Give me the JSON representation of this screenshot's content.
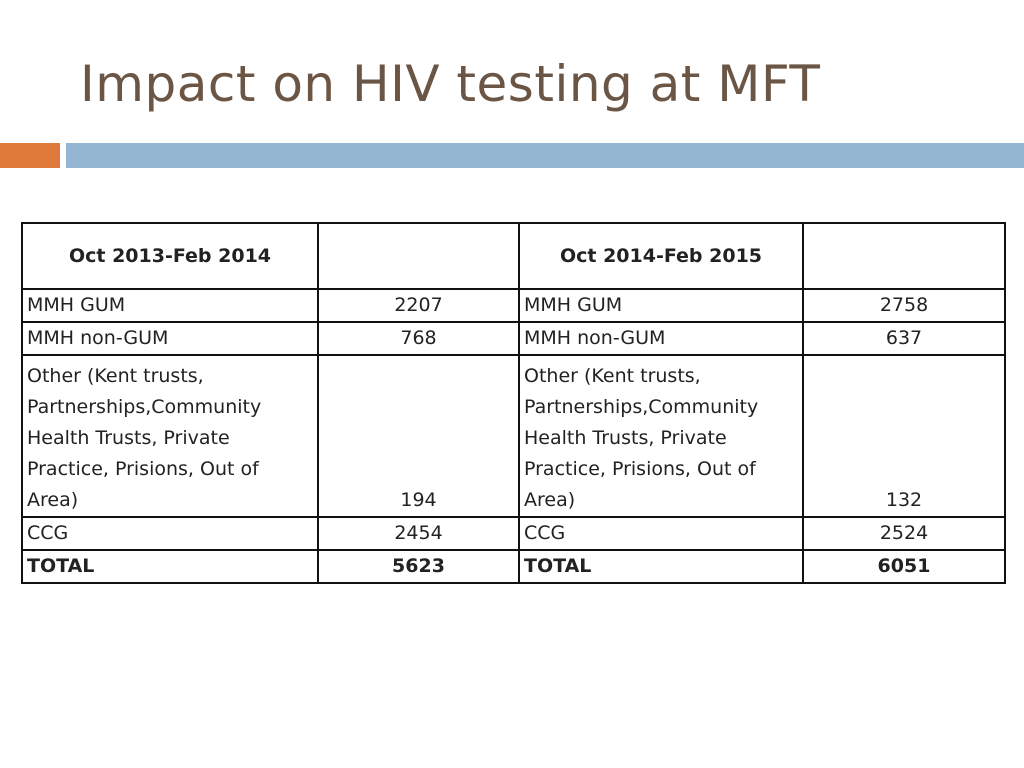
{
  "slide": {
    "title": "Impact on HIV testing at MFT",
    "accent_colors": {
      "orange": "#e07a3a",
      "blue": "#94b6d2"
    }
  },
  "table": {
    "left_period": "Oct 2013-Feb 2014",
    "right_period": "Oct 2014-Feb 2015",
    "rows": [
      {
        "left_label": "MMH GUM",
        "left_value": "2207",
        "right_label": "MMH GUM",
        "right_value": "2758"
      },
      {
        "left_label": "MMH non-GUM",
        "left_value": "768",
        "right_label": "MMH non-GUM",
        "right_value": "637"
      },
      {
        "left_label": "Other (Kent trusts, Partnerships,Community Health Trusts, Private Practice, Prisions, Out of Area)",
        "left_value": "194",
        "right_label": "Other (Kent trusts, Partnerships,Community Health Trusts, Private Practice, Prisions, Out of Area)",
        "right_value": "132"
      },
      {
        "left_label": "CCG",
        "left_value": "2454",
        "right_label": "CCG",
        "right_value": "2524"
      },
      {
        "left_label": "TOTAL",
        "left_value": "5623",
        "right_label": "TOTAL",
        "right_value": "6051"
      }
    ]
  }
}
